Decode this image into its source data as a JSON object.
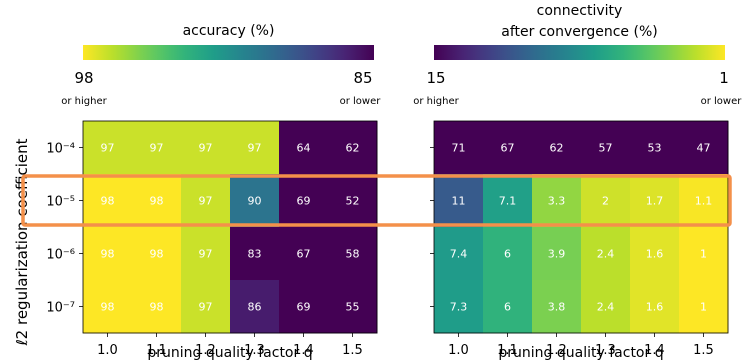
{
  "chart_data": [
    {
      "type": "heatmap",
      "title": "",
      "xlabel": "pruning quality factor q",
      "ylabel": "ℓ2 regularization coefficient",
      "x_ticks": [
        "1.0",
        "1.1",
        "1.2",
        "1.3",
        "1.4",
        "1.5"
      ],
      "y_ticks": [
        "10⁻⁴",
        "10⁻⁵",
        "10⁻⁶",
        "10⁻⁷"
      ],
      "values": [
        [
          97,
          97,
          97,
          97,
          64,
          62
        ],
        [
          98,
          98,
          97,
          90,
          69,
          52
        ],
        [
          98,
          98,
          97,
          83,
          67,
          58
        ],
        [
          98,
          98,
          97,
          86,
          69,
          55
        ]
      ],
      "colorbar": {
        "label": "accuracy (%)",
        "min_label": "98",
        "min_sublabel": "or higher",
        "max_label": "85",
        "max_sublabel": "or lower",
        "range": [
          98,
          85
        ],
        "colormap": "viridis-reversed"
      }
    },
    {
      "type": "heatmap",
      "title": "",
      "xlabel": "pruning quality factor q",
      "ylabel": "",
      "x_ticks": [
        "1.0",
        "1.1",
        "1.2",
        "1.3",
        "1.4",
        "1.5"
      ],
      "y_ticks": [
        "10⁻⁴",
        "10⁻⁵",
        "10⁻⁶",
        "10⁻⁷"
      ],
      "values": [
        [
          71,
          67,
          62,
          57,
          53,
          47
        ],
        [
          11,
          7.1,
          3.3,
          2,
          1.7,
          1.1
        ],
        [
          7.4,
          6,
          3.9,
          2.4,
          1.6,
          1
        ],
        [
          7.3,
          6,
          3.8,
          2.4,
          1.6,
          1
        ]
      ],
      "colorbar": {
        "label_line1": "connectivity",
        "label_line2": "after convergence (%)",
        "min_label": "15",
        "min_sublabel": "or higher",
        "max_label": "1",
        "max_sublabel": "or lower",
        "range": [
          15,
          1
        ],
        "colormap": "viridis"
      }
    }
  ],
  "highlight": {
    "row_index": 1,
    "color": "#f4904a"
  }
}
